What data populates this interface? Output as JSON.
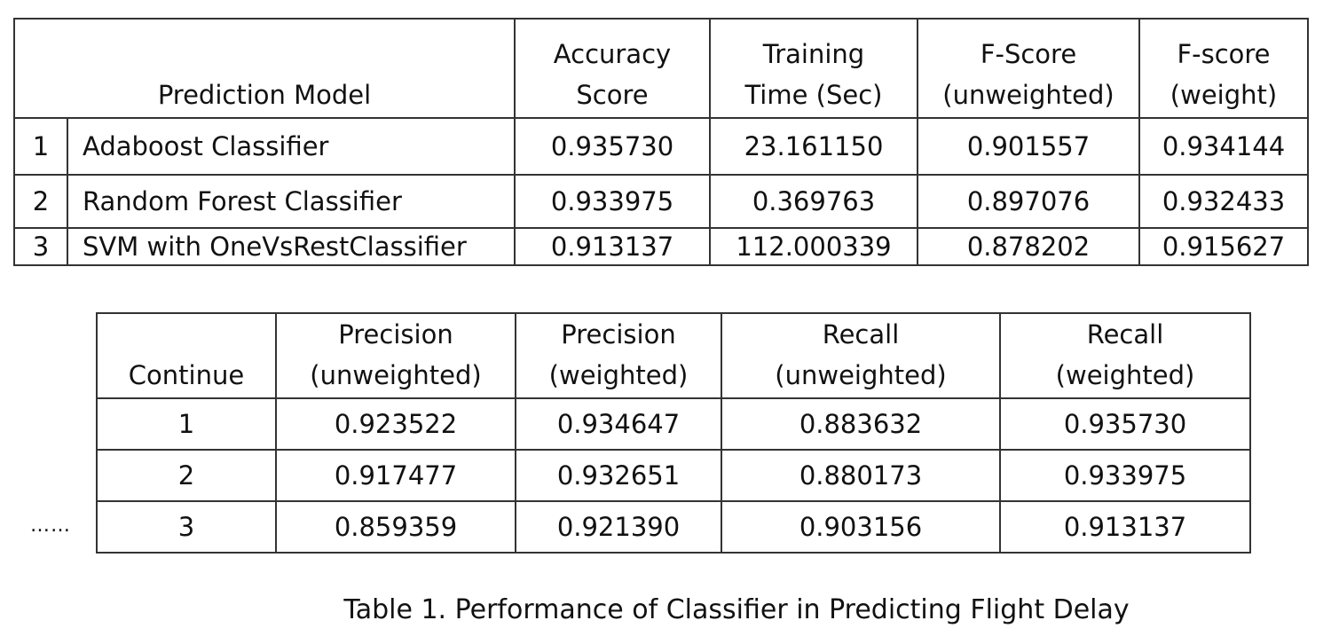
{
  "table1": {
    "headers": {
      "model": "Prediction Model",
      "accuracy": [
        "Accuracy",
        "Score"
      ],
      "training_time": [
        "Training",
        "Time (Sec)"
      ],
      "fscore_unweighted": [
        "F-Score",
        "(unweighted)"
      ],
      "fscore_weight": [
        "F-score",
        "(weight)"
      ]
    },
    "rows": [
      {
        "index": "1",
        "model": "Adaboost Classifier",
        "accuracy": "0.935730",
        "training_time": "23.161150",
        "fscore_unweighted": "0.901557",
        "fscore_weight": "0.934144"
      },
      {
        "index": "2",
        "model": "Random Forest Classifier",
        "accuracy": "0.933975",
        "training_time": "0.369763",
        "fscore_unweighted": "0.897076",
        "fscore_weight": "0.932433"
      },
      {
        "index": "3",
        "model": "SVM with OneVsRestClassifier",
        "accuracy": "0.913137",
        "training_time": "112.000339",
        "fscore_unweighted": "0.878202",
        "fscore_weight": "0.915627"
      }
    ]
  },
  "ellipsis": "……",
  "table2": {
    "headers": {
      "continue": "Continue",
      "precision_unweighted": [
        "Precision",
        "(unweighted)"
      ],
      "precision_weighted": [
        "Precision",
        "(weighted)"
      ],
      "recall_unweighted": [
        "Recall",
        "(unweighted)"
      ],
      "recall_weighted": [
        "Recall",
        "(weighted)"
      ]
    },
    "rows": [
      {
        "index": "1",
        "precision_unweighted": "0.923522",
        "precision_weighted": "0.934647",
        "recall_unweighted": "0.883632",
        "recall_weighted": "0.935730"
      },
      {
        "index": "2",
        "precision_unweighted": "0.917477",
        "precision_weighted": "0.932651",
        "recall_unweighted": "0.880173",
        "recall_weighted": "0.933975"
      },
      {
        "index": "3",
        "precision_unweighted": "0.859359",
        "precision_weighted": "0.921390",
        "recall_unweighted": "0.903156",
        "recall_weighted": "0.913137"
      }
    ]
  },
  "caption": "Table 1. Performance of Classifier in Predicting Flight Delay"
}
